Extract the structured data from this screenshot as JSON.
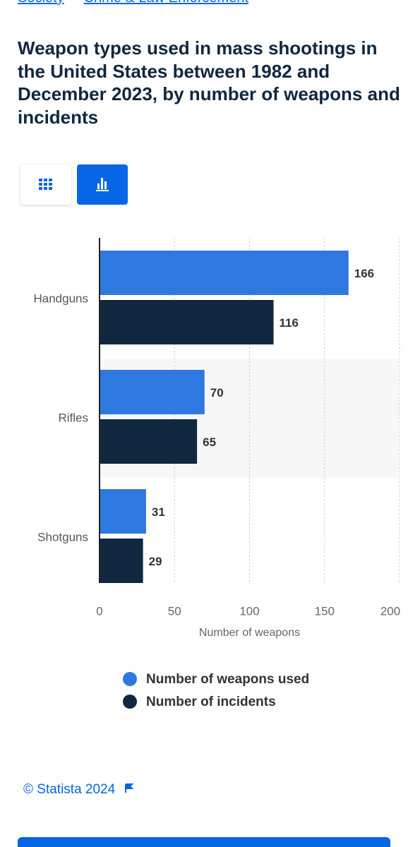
{
  "breadcrumb": [
    "Society",
    "Crime & Law Enforcement"
  ],
  "chart_data": {
    "type": "bar",
    "orientation": "horizontal",
    "title": "Weapon types used in mass shootings in the United States between 1982 and December 2023, by number of weapons and incidents",
    "categories": [
      "Handguns",
      "Rifles",
      "Shotguns"
    ],
    "series": [
      {
        "name": "Number of weapons used",
        "color": "#2f78df",
        "values": [
          166,
          70,
          31
        ]
      },
      {
        "name": "Number of incidents",
        "color": "#10273f",
        "values": [
          116,
          65,
          29
        ]
      }
    ],
    "xlabel": "Number of weapons",
    "xlim": [
      0,
      200
    ],
    "xticks": [
      0,
      50,
      100,
      150,
      200
    ],
    "grid": true,
    "legend": "bottom"
  },
  "footer": "© Statista 2024"
}
